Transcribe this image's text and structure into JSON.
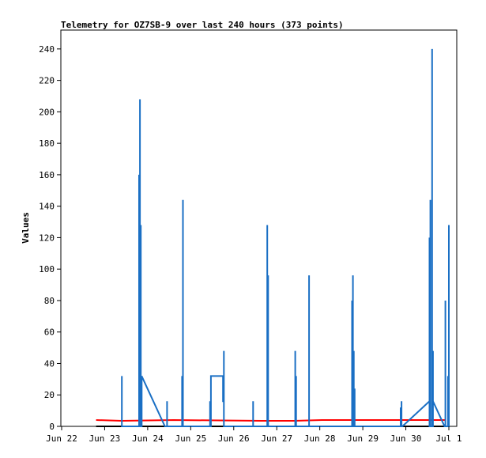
{
  "chart_data": {
    "type": "line",
    "title": "Telemetry for OZ7SB-9 over last 240 hours (373 points)",
    "ylabel": "Values",
    "xlabel": "",
    "ylim": [
      0,
      252
    ],
    "yticks": [
      0,
      20,
      40,
      60,
      80,
      100,
      120,
      140,
      160,
      180,
      200,
      220,
      240
    ],
    "xlim": [
      0,
      9.0
    ],
    "xticks": [
      {
        "x": 0,
        "label": "Jun 22"
      },
      {
        "x": 1,
        "label": "Jun 23"
      },
      {
        "x": 2,
        "label": "Jun 24"
      },
      {
        "x": 3,
        "label": "Jun 25"
      },
      {
        "x": 4,
        "label": "Jun 26"
      },
      {
        "x": 5,
        "label": "Jun 27"
      },
      {
        "x": 6,
        "label": "Jun 28"
      },
      {
        "x": 7,
        "label": "Jun 29"
      },
      {
        "x": 8,
        "label": "Jun 30"
      },
      {
        "x": 9,
        "label": "Jul 1"
      }
    ],
    "grid": false,
    "legend": "none",
    "series": [
      {
        "color": "#000000",
        "points": [
          [
            0.8,
            0
          ],
          [
            8.93,
            0
          ]
        ]
      },
      {
        "color": "#ff0000",
        "points": [
          [
            0.8,
            4
          ],
          [
            1.4,
            3.5
          ],
          [
            2.6,
            4
          ],
          [
            4.65,
            3.5
          ],
          [
            5.4,
            3.5
          ],
          [
            6.05,
            4
          ],
          [
            8.93,
            4
          ]
        ]
      },
      {
        "color": "#1a6fc4",
        "points": [
          [
            1.4,
            0
          ],
          [
            1.4,
            32
          ],
          [
            1.4,
            0
          ],
          [
            1.8,
            0
          ],
          [
            1.8,
            160
          ],
          [
            1.8,
            0
          ],
          [
            1.82,
            0
          ],
          [
            1.82,
            208
          ],
          [
            1.82,
            0
          ],
          [
            1.84,
            0
          ],
          [
            1.84,
            128
          ],
          [
            1.84,
            0
          ],
          [
            1.86,
            0
          ],
          [
            1.86,
            32
          ],
          [
            2.4,
            0
          ],
          [
            2.45,
            0
          ],
          [
            2.45,
            16
          ],
          [
            2.45,
            0
          ],
          [
            2.8,
            0
          ],
          [
            2.8,
            32
          ],
          [
            2.8,
            0
          ],
          [
            2.82,
            0
          ],
          [
            2.82,
            144
          ],
          [
            2.82,
            0
          ],
          [
            3.45,
            0
          ],
          [
            3.45,
            16
          ],
          [
            3.45,
            0
          ],
          [
            3.47,
            0
          ],
          [
            3.47,
            32
          ],
          [
            3.75,
            32
          ],
          [
            3.75,
            16
          ],
          [
            3.77,
            16
          ],
          [
            3.77,
            48
          ],
          [
            3.77,
            0
          ],
          [
            4.45,
            0
          ],
          [
            4.45,
            16
          ],
          [
            4.45,
            0
          ],
          [
            4.78,
            0
          ],
          [
            4.78,
            128
          ],
          [
            4.78,
            0
          ],
          [
            4.8,
            0
          ],
          [
            4.8,
            96
          ],
          [
            4.8,
            0
          ],
          [
            5.43,
            0
          ],
          [
            5.43,
            48
          ],
          [
            5.43,
            0
          ],
          [
            5.45,
            0
          ],
          [
            5.45,
            32
          ],
          [
            5.45,
            0
          ],
          [
            5.75,
            0
          ],
          [
            5.75,
            96
          ],
          [
            5.75,
            0
          ],
          [
            6.75,
            0
          ],
          [
            6.75,
            80
          ],
          [
            6.75,
            0
          ],
          [
            6.77,
            0
          ],
          [
            6.77,
            96
          ],
          [
            6.77,
            0
          ],
          [
            6.79,
            0
          ],
          [
            6.79,
            48
          ],
          [
            6.79,
            0
          ],
          [
            6.81,
            0
          ],
          [
            6.81,
            24
          ],
          [
            6.81,
            0
          ],
          [
            7.88,
            0
          ],
          [
            7.88,
            12
          ],
          [
            7.88,
            0
          ],
          [
            7.9,
            0
          ],
          [
            7.9,
            16
          ],
          [
            7.9,
            0
          ],
          [
            7.92,
            0
          ],
          [
            8.55,
            16
          ],
          [
            8.55,
            120
          ],
          [
            8.55,
            0
          ],
          [
            8.57,
            0
          ],
          [
            8.57,
            144
          ],
          [
            8.57,
            0
          ],
          [
            8.61,
            0
          ],
          [
            8.61,
            240
          ],
          [
            8.61,
            0
          ],
          [
            8.63,
            0
          ],
          [
            8.63,
            48
          ],
          [
            8.63,
            16
          ],
          [
            8.9,
            0
          ],
          [
            8.92,
            0
          ],
          [
            8.92,
            80
          ],
          [
            8.92,
            0
          ],
          [
            8.98,
            0
          ],
          [
            8.98,
            32
          ],
          [
            8.98,
            0
          ],
          [
            9.0,
            0
          ],
          [
            9.0,
            128
          ],
          [
            9.0,
            0
          ]
        ]
      }
    ]
  }
}
